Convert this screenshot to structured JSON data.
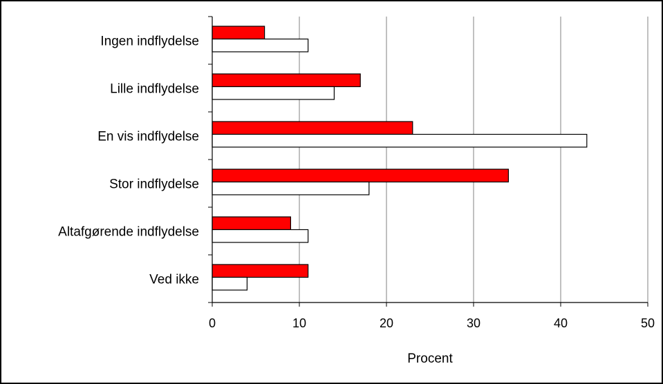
{
  "chart_data": {
    "type": "bar",
    "orientation": "horizontal",
    "categories": [
      "Ingen indflydelse",
      "Lille indflydelse",
      "En vis indflydelse",
      "Stor indflydelse",
      "Altafgørende indflydelse",
      "Ved ikke"
    ],
    "series": [
      {
        "color": "#ff0000",
        "values": [
          6,
          17,
          23,
          34,
          9,
          11
        ]
      },
      {
        "color": "#ffffff",
        "values": [
          11,
          14,
          43,
          18,
          11,
          4
        ]
      }
    ],
    "xlabel": "Procent",
    "ylabel": "",
    "xlim": [
      0,
      50
    ],
    "xticks": [
      "0",
      "10",
      "20",
      "30",
      "40",
      "50"
    ],
    "grid": true,
    "legend": "none"
  }
}
